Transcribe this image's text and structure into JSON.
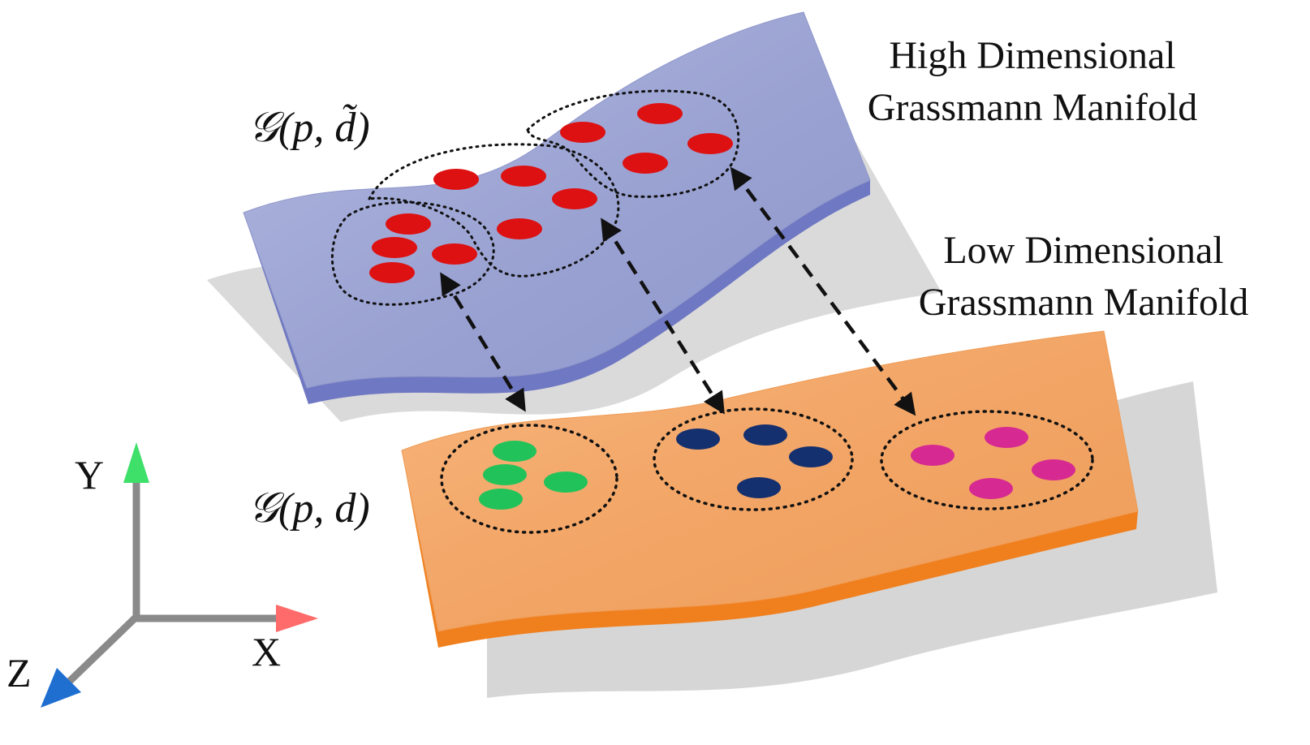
{
  "labels": {
    "high_line1": "High Dimensional",
    "high_line2": "Grassmann Manifold",
    "low_line1": "Low Dimensional",
    "low_line2": "Grassmann Manifold",
    "high_symbol": "𝒢(p, d̃)",
    "low_symbol": "𝒢(p, d)"
  },
  "axes": {
    "x": "X",
    "y": "Y",
    "z": "Z"
  },
  "colors": {
    "high_manifold": "#9ea6d4",
    "high_manifold_edge": "#6f78c2",
    "low_manifold": "#f4a86a",
    "low_manifold_edge": "#f07f1e",
    "high_points": "#dd1111",
    "cluster_green": "#22c25a",
    "cluster_navy": "#15306e",
    "cluster_magenta": "#d62a92",
    "axis_x": "#ff6b6b",
    "axis_y": "#3ee06a",
    "axis_z": "#1f6fd1",
    "axis_line": "#8a8a8a"
  }
}
